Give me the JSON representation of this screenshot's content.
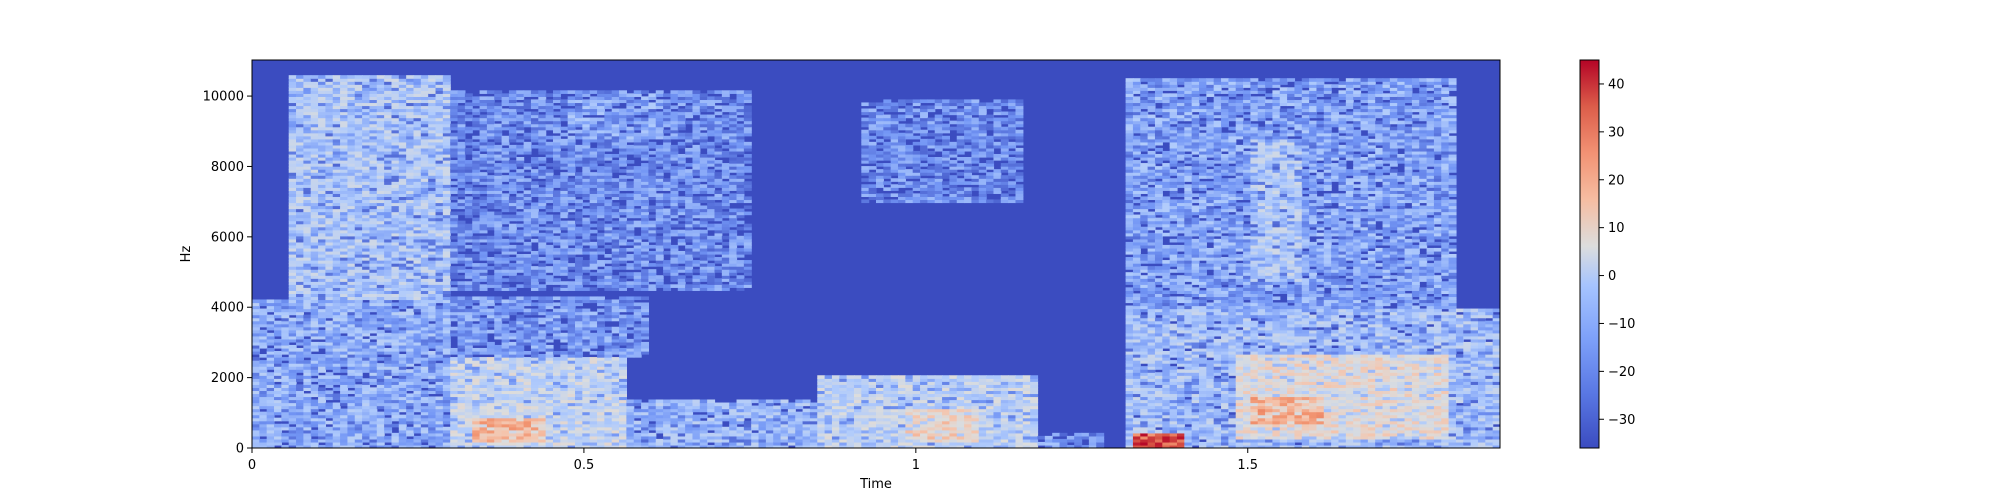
{
  "chart_data": {
    "type": "heatmap",
    "subtype": "spectrogram",
    "title": "",
    "xlabel": "Time",
    "ylabel": "Hz",
    "xlim": [
      0,
      1.88
    ],
    "ylim": [
      0,
      11025
    ],
    "x_ticks": [
      0,
      0.5,
      1,
      1.5
    ],
    "x_tick_labels": [
      "0",
      "0.5",
      "1",
      "1.5"
    ],
    "y_ticks": [
      0,
      2000,
      4000,
      6000,
      8000,
      10000
    ],
    "y_tick_labels": [
      "0",
      "2000",
      "4000",
      "6000",
      "8000",
      "10000"
    ],
    "colormap": "coolwarm",
    "colorbar": {
      "range": [
        -36,
        45
      ],
      "ticks": [
        -30,
        -20,
        -10,
        0,
        10,
        20,
        30,
        40
      ],
      "tick_labels": [
        "−30",
        "−20",
        "−10",
        "0",
        "10",
        "20",
        "30",
        "40"
      ],
      "colors": [
        "#3b4cc0",
        "#7396f5",
        "#b0cbfc",
        "#dcdddd",
        "#f5c4ac",
        "#f1926e",
        "#d65244",
        "#b40426"
      ]
    },
    "background_level_db": -34,
    "regions": [
      {
        "t0": 0.0,
        "t1": 0.3,
        "f0": 0,
        "f1": 4200,
        "db": -18
      },
      {
        "t0": 0.05,
        "t1": 0.3,
        "f0": 4200,
        "f1": 10600,
        "db": -12
      },
      {
        "t0": 0.3,
        "t1": 0.56,
        "f0": 0,
        "f1": 2600,
        "db": -6
      },
      {
        "t0": 0.33,
        "t1": 0.44,
        "f0": 200,
        "f1": 900,
        "db": 14
      },
      {
        "t0": 0.3,
        "t1": 0.6,
        "f0": 2600,
        "f1": 4300,
        "db": -22
      },
      {
        "t0": 0.3,
        "t1": 0.75,
        "f0": 4500,
        "f1": 10200,
        "db": -24
      },
      {
        "t0": 0.47,
        "t1": 0.62,
        "f0": 8800,
        "f1": 10100,
        "db": -20
      },
      {
        "t0": 0.56,
        "t1": 0.9,
        "f0": 0,
        "f1": 1400,
        "db": -16
      },
      {
        "t0": 0.85,
        "t1": 1.18,
        "f0": 0,
        "f1": 2100,
        "db": -8
      },
      {
        "t0": 0.98,
        "t1": 1.1,
        "f0": 200,
        "f1": 1100,
        "db": 6
      },
      {
        "t0": 0.92,
        "t1": 1.16,
        "f0": 7000,
        "f1": 9900,
        "db": -24
      },
      {
        "t0": 1.18,
        "t1": 1.28,
        "f0": 0,
        "f1": 400,
        "db": -22
      },
      {
        "t0": 1.32,
        "t1": 1.88,
        "f0": 0,
        "f1": 4000,
        "db": -14
      },
      {
        "t0": 1.33,
        "t1": 1.4,
        "f0": 0,
        "f1": 400,
        "db": 38
      },
      {
        "t0": 1.48,
        "t1": 1.8,
        "f0": 300,
        "f1": 2700,
        "db": 2
      },
      {
        "t0": 1.5,
        "t1": 1.62,
        "f0": 700,
        "f1": 1500,
        "db": 16
      },
      {
        "t0": 1.32,
        "t1": 1.81,
        "f0": 4000,
        "f1": 10500,
        "db": -20
      },
      {
        "t0": 1.5,
        "t1": 1.58,
        "f0": 4700,
        "f1": 8800,
        "db": -12
      }
    ]
  }
}
